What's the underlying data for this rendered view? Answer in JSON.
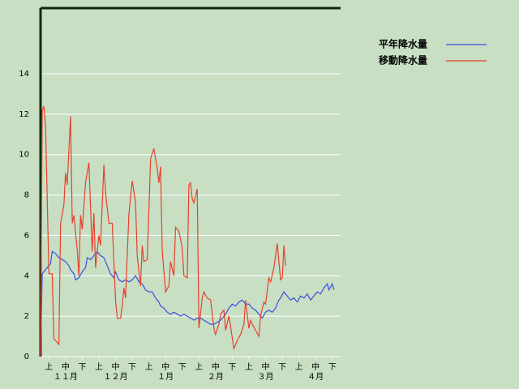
{
  "chart_data": {
    "type": "line",
    "xlim": [
      0,
      180
    ],
    "ylim": [
      0,
      17.25
    ],
    "yticks": [
      0,
      2,
      4,
      6,
      8,
      10,
      12,
      14
    ],
    "xticks": [
      {
        "value": 5,
        "label": "上"
      },
      {
        "value": 15,
        "label": "中"
      },
      {
        "value": 25,
        "label": "下"
      },
      {
        "value": 35,
        "label": "上"
      },
      {
        "value": 45,
        "label": "中"
      },
      {
        "value": 55,
        "label": "下"
      },
      {
        "value": 65,
        "label": "上"
      },
      {
        "value": 75,
        "label": "中"
      },
      {
        "value": 85,
        "label": "下"
      },
      {
        "value": 95,
        "label": "上"
      },
      {
        "value": 105,
        "label": "中"
      },
      {
        "value": 115,
        "label": "下"
      },
      {
        "value": 125,
        "label": "上"
      },
      {
        "value": 135,
        "label": "中"
      },
      {
        "value": 145,
        "label": "下"
      },
      {
        "value": 155,
        "label": "上"
      },
      {
        "value": 165,
        "label": "中"
      },
      {
        "value": 175,
        "label": "下"
      }
    ],
    "month_ticks": [
      {
        "value": 15,
        "label": "１１月"
      },
      {
        "value": 45,
        "label": "１２月"
      },
      {
        "value": 75,
        "label": "１月"
      },
      {
        "value": 105,
        "label": "２月"
      },
      {
        "value": 135,
        "label": "３月"
      },
      {
        "value": 165,
        "label": "４月"
      }
    ],
    "grid": true,
    "series": [
      {
        "name": "平年降水量",
        "color": "#3b4fe0",
        "x": [
          0,
          1,
          2,
          4,
          6,
          7,
          9,
          11,
          13,
          15,
          17,
          18,
          20,
          21,
          23,
          25,
          27,
          28,
          30,
          32,
          34,
          36,
          38,
          40,
          42,
          44,
          45,
          47,
          49,
          51,
          53,
          55,
          57,
          59,
          61,
          63,
          65,
          67,
          69,
          71,
          72,
          74,
          76,
          78,
          80,
          82,
          84,
          86,
          88,
          90,
          92,
          94,
          96,
          98,
          100,
          102,
          104,
          106,
          108,
          109,
          111,
          113,
          115,
          117,
          119,
          121,
          123,
          125,
          127,
          129,
          131,
          133,
          135,
          137,
          139,
          141,
          143,
          144,
          146,
          148,
          150,
          152,
          154,
          156,
          158,
          160,
          162,
          164,
          166,
          168,
          170,
          172,
          173,
          175,
          176
        ],
        "values": [
          0,
          4.1,
          4.2,
          4.4,
          4.6,
          5.2,
          5.1,
          4.9,
          4.8,
          4.7,
          4.5,
          4.3,
          4.1,
          3.8,
          3.9,
          4.2,
          4.4,
          4.9,
          4.8,
          5.0,
          5.2,
          5.0,
          4.9,
          4.5,
          4.1,
          3.9,
          4.2,
          3.8,
          3.7,
          3.8,
          3.7,
          3.8,
          4.0,
          3.7,
          3.6,
          3.3,
          3.2,
          3.2,
          2.9,
          2.7,
          2.5,
          2.4,
          2.2,
          2.1,
          2.2,
          2.1,
          2.0,
          2.1,
          2.0,
          1.9,
          1.8,
          1.9,
          1.9,
          1.8,
          1.7,
          1.6,
          1.6,
          1.7,
          1.8,
          1.9,
          2.1,
          2.4,
          2.6,
          2.5,
          2.7,
          2.8,
          2.6,
          2.6,
          2.4,
          2.3,
          2.1,
          1.9,
          2.2,
          2.3,
          2.2,
          2.4,
          2.8,
          2.9,
          3.2,
          3.0,
          2.8,
          2.9,
          2.7,
          3.0,
          2.9,
          3.1,
          2.8,
          3.0,
          3.2,
          3.1,
          3.4,
          3.6,
          3.3,
          3.6,
          3.3
        ]
      },
      {
        "name": "移動降水量",
        "color": "#e8402c",
        "x": [
          0,
          1,
          2,
          3,
          5,
          7,
          8,
          11,
          12,
          14,
          15,
          16,
          18,
          19,
          20,
          22,
          23,
          24,
          25,
          27,
          29,
          31,
          32,
          33,
          35,
          36,
          38,
          39,
          41,
          43,
          45,
          46,
          48,
          49,
          50,
          51,
          53,
          54,
          55,
          57,
          58,
          60,
          61,
          62,
          64,
          66,
          68,
          70,
          71,
          72,
          73,
          75,
          77,
          78,
          80,
          81,
          83,
          85,
          86,
          88,
          89,
          90,
          91,
          92,
          94,
          95,
          97,
          98,
          100,
          102,
          104,
          105,
          107,
          108,
          110,
          111,
          113,
          114,
          116,
          118,
          120,
          122,
          123,
          125,
          126,
          127,
          129,
          131,
          132,
          134,
          135,
          137,
          138,
          140,
          142,
          143,
          144,
          145,
          146,
          147
        ],
        "values": [
          0,
          12.2,
          12.4,
          11.4,
          4.1,
          4.1,
          0.9,
          0.6,
          6.6,
          7.5,
          9.1,
          8.5,
          11.9,
          6.6,
          7.0,
          5.3,
          4.0,
          7.0,
          6.3,
          8.6,
          9.6,
          5.2,
          7.1,
          4.4,
          6.0,
          5.5,
          9.5,
          8.1,
          6.6,
          6.6,
          2.8,
          1.9,
          1.9,
          2.5,
          3.4,
          2.9,
          7.0,
          7.9,
          8.7,
          7.6,
          5.0,
          3.5,
          5.5,
          4.7,
          4.8,
          9.8,
          10.3,
          9.3,
          8.6,
          9.4,
          5.2,
          3.2,
          3.5,
          4.7,
          4.0,
          6.4,
          6.2,
          5.4,
          4.0,
          3.9,
          8.5,
          8.6,
          7.8,
          7.6,
          8.3,
          1.4,
          2.9,
          3.2,
          2.9,
          2.8,
          1.4,
          1.1,
          1.6,
          2.1,
          2.3,
          1.3,
          2.0,
          1.5,
          0.4,
          0.8,
          1.1,
          1.6,
          2.8,
          1.4,
          1.8,
          1.6,
          1.3,
          1.0,
          2.0,
          2.7,
          2.6,
          3.9,
          3.7,
          4.4,
          5.6,
          4.7,
          3.8,
          3.9,
          5.5,
          4.5
        ]
      }
    ]
  }
}
